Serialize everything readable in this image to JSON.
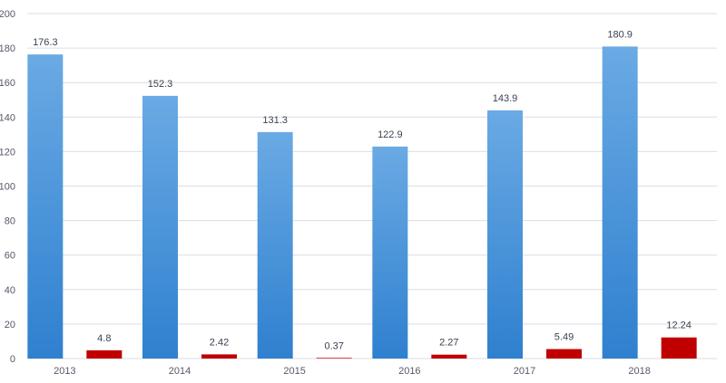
{
  "chart_data": {
    "type": "bar",
    "title": "",
    "xlabel": "",
    "ylabel": "",
    "categories": [
      "2013",
      "2014",
      "2015",
      "2016",
      "2017",
      "2018"
    ],
    "series": [
      {
        "values": [
          176.3,
          152.3,
          131.3,
          122.9,
          143.9,
          180.9
        ],
        "labels": [
          "176.3",
          "152.3",
          "131.3",
          "122.9",
          "143.9",
          "180.9"
        ],
        "color": "#3f8fd6",
        "color_light": "#6aaae4"
      },
      {
        "values": [
          4.8,
          2.42,
          0.37,
          2.27,
          5.49,
          12.24
        ],
        "labels": [
          "4.8",
          "2.42",
          "0.37",
          "2.27",
          "5.49",
          "12.24"
        ],
        "color": "#c00000"
      }
    ],
    "ylim": [
      0,
      200
    ],
    "yticks": [
      0,
      20,
      40,
      60,
      80,
      100,
      120,
      140,
      160,
      180,
      200
    ],
    "grid": true,
    "legend": "none"
  }
}
